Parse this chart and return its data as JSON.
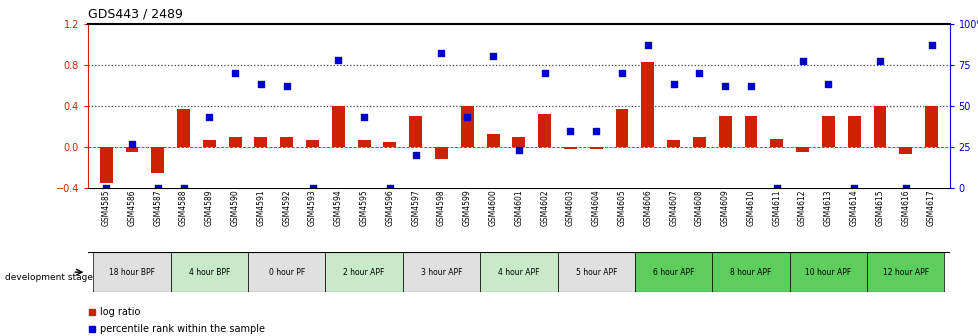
{
  "title": "GDS443 / 2489",
  "samples": [
    "GSM4585",
    "GSM4586",
    "GSM4587",
    "GSM4588",
    "GSM4589",
    "GSM4590",
    "GSM4591",
    "GSM4592",
    "GSM4593",
    "GSM4594",
    "GSM4595",
    "GSM4596",
    "GSM4597",
    "GSM4598",
    "GSM4599",
    "GSM4600",
    "GSM4601",
    "GSM4602",
    "GSM4603",
    "GSM4604",
    "GSM4605",
    "GSM4606",
    "GSM4607",
    "GSM4608",
    "GSM4609",
    "GSM4610",
    "GSM4611",
    "GSM4612",
    "GSM4613",
    "GSM4614",
    "GSM4615",
    "GSM4616",
    "GSM4617"
  ],
  "log_ratio": [
    -0.35,
    -0.05,
    -0.25,
    0.37,
    0.07,
    0.1,
    0.1,
    0.1,
    0.07,
    0.4,
    0.07,
    0.05,
    0.3,
    -0.12,
    0.4,
    0.13,
    0.1,
    0.32,
    -0.02,
    -0.02,
    0.37,
    0.83,
    0.07,
    0.1,
    0.3,
    0.3,
    0.08,
    -0.05,
    0.3,
    0.3,
    0.4,
    -0.07,
    0.4
  ],
  "percentile": [
    0.0,
    0.27,
    0.0,
    0.0,
    0.43,
    0.7,
    0.63,
    0.62,
    0.0,
    0.78,
    0.43,
    0.0,
    0.2,
    0.82,
    0.43,
    0.8,
    0.23,
    0.7,
    0.35,
    0.35,
    0.7,
    0.87,
    0.63,
    0.7,
    0.62,
    0.62,
    0.0,
    0.77,
    0.63,
    0.0,
    0.77,
    0.0,
    0.87
  ],
  "stage_groups": [
    {
      "label": "18 hour BPF",
      "count": 3,
      "color": "#e0e0e0"
    },
    {
      "label": "4 hour BPF",
      "count": 3,
      "color": "#c8eac8"
    },
    {
      "label": "0 hour PF",
      "count": 3,
      "color": "#e0e0e0"
    },
    {
      "label": "2 hour APF",
      "count": 3,
      "color": "#c8eac8"
    },
    {
      "label": "3 hour APF",
      "count": 3,
      "color": "#e0e0e0"
    },
    {
      "label": "4 hour APF",
      "count": 3,
      "color": "#c8eac8"
    },
    {
      "label": "5 hour APF",
      "count": 3,
      "color": "#e0e0e0"
    },
    {
      "label": "6 hour APF",
      "count": 3,
      "color": "#5dcd5d"
    },
    {
      "label": "8 hour APF",
      "count": 3,
      "color": "#5dcd5d"
    },
    {
      "label": "10 hour APF",
      "count": 3,
      "color": "#5dcd5d"
    },
    {
      "label": "12 hour APF",
      "count": 3,
      "color": "#5dcd5d"
    }
  ],
  "ylim_left": [
    -0.4,
    1.2
  ],
  "ylim_right": [
    0,
    100
  ],
  "bar_color": "#cc2200",
  "scatter_color": "#0000cc",
  "dotted_line_color": "#444444",
  "legend_log": "log ratio",
  "legend_pct": "percentile rank within the sample"
}
